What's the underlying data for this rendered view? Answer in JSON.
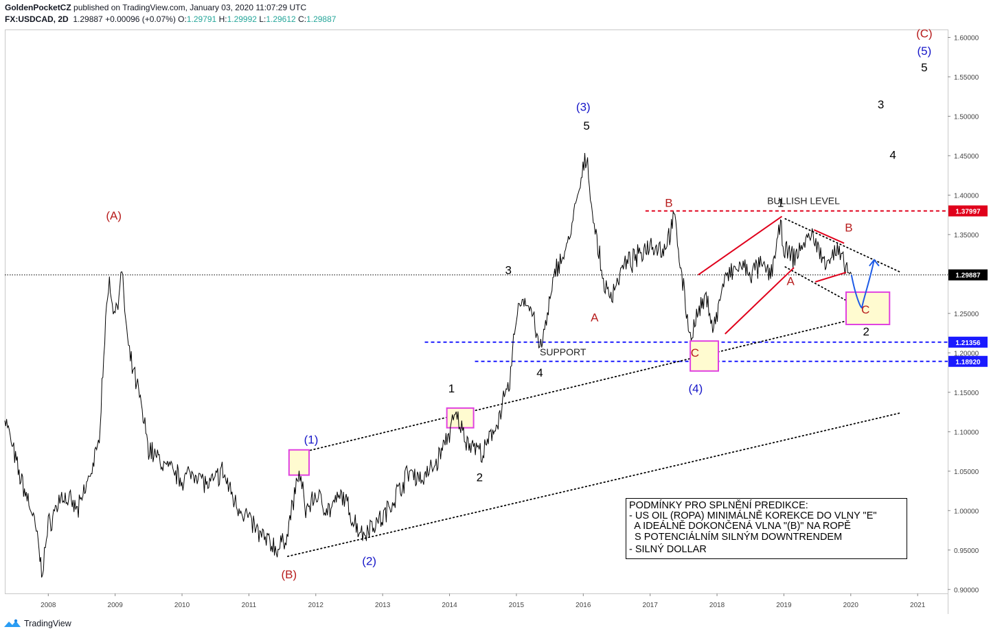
{
  "header": {
    "author": "GoldenPocketCZ",
    "published_text": "published on TradingView.com, January 03, 2020 11:07:29 UTC",
    "symbol": "FX:USDCAD, 2D",
    "last": "1.29887",
    "change": "+0.00096 (+0.07%)",
    "o_label": "O:",
    "o_value": "1.29791",
    "h_label": "H:",
    "h_value": "1.29992",
    "l_label": "L:",
    "l_value": "1.29612",
    "c_label": "C:",
    "c_value": "1.29887"
  },
  "footer": {
    "brand": "TradingView"
  },
  "colors": {
    "price": "#000000",
    "red": "#e0001b",
    "darkred": "#b71c1c",
    "blue": "#1a1aff",
    "wave_blue": "#1515c8",
    "magenta": "#e040e0",
    "box_fill": "#fffbd0"
  },
  "chart_data": {
    "type": "line",
    "y_scale": "linear",
    "ylim": [
      0.895,
      1.61
    ],
    "xlim": [
      2007.35,
      2021.45
    ],
    "y_ticks": [
      "1.60000",
      "1.55000",
      "1.50000",
      "1.45000",
      "1.40000",
      "1.35000",
      "1.30000",
      "1.25000",
      "1.20000",
      "1.15000",
      "1.10000",
      "1.05000",
      "1.00000",
      "0.95000",
      "0.90000"
    ],
    "x_ticks": [
      "2008",
      "2009",
      "2010",
      "2011",
      "2012",
      "2013",
      "2014",
      "2015",
      "2016",
      "2017",
      "2018",
      "2019",
      "2020",
      "2021"
    ],
    "price_series": {
      "x": [
        2007.35,
        2007.55,
        2007.75,
        2007.85,
        2007.9,
        2008.0,
        2008.2,
        2008.45,
        2008.6,
        2008.75,
        2008.83,
        2008.9,
        2009.0,
        2009.1,
        2009.2,
        2009.35,
        2009.5,
        2009.7,
        2009.85,
        2010.0,
        2010.2,
        2010.4,
        2010.6,
        2010.8,
        2011.0,
        2011.15,
        2011.3,
        2011.45,
        2011.57,
        2011.75,
        2011.85,
        2012.0,
        2012.2,
        2012.4,
        2012.55,
        2012.7,
        2012.8,
        2013.0,
        2013.2,
        2013.4,
        2013.6,
        2013.8,
        2014.0,
        2014.1,
        2014.25,
        2014.4,
        2014.5,
        2014.7,
        2014.9,
        2015.0,
        2015.1,
        2015.25,
        2015.35,
        2015.45,
        2015.6,
        2015.75,
        2015.9,
        2016.05,
        2016.15,
        2016.3,
        2016.4,
        2016.6,
        2016.8,
        2017.0,
        2017.2,
        2017.37,
        2017.5,
        2017.6,
        2017.72,
        2017.85,
        2017.95,
        2018.1,
        2018.2,
        2018.35,
        2018.5,
        2018.65,
        2018.8,
        2018.95,
        2019.0,
        2019.15,
        2019.3,
        2019.45,
        2019.55,
        2019.7,
        2019.8,
        2019.9,
        2020.01
      ],
      "y": [
        1.12,
        1.05,
        1.0,
        0.96,
        0.92,
        0.98,
        1.02,
        1.0,
        1.04,
        1.08,
        1.2,
        1.29,
        1.25,
        1.3,
        1.2,
        1.15,
        1.08,
        1.06,
        1.05,
        1.04,
        1.05,
        1.03,
        1.05,
        1.01,
        0.99,
        0.97,
        0.96,
        0.95,
        0.97,
        1.05,
        1.0,
        1.02,
        1.0,
        1.02,
        0.99,
        0.97,
        0.98,
        0.99,
        1.02,
        1.05,
        1.04,
        1.06,
        1.1,
        1.12,
        1.09,
        1.08,
        1.07,
        1.11,
        1.16,
        1.25,
        1.27,
        1.25,
        1.2,
        1.24,
        1.31,
        1.33,
        1.39,
        1.45,
        1.37,
        1.29,
        1.27,
        1.31,
        1.32,
        1.34,
        1.33,
        1.37,
        1.28,
        1.22,
        1.25,
        1.27,
        1.23,
        1.29,
        1.3,
        1.31,
        1.3,
        1.31,
        1.3,
        1.36,
        1.33,
        1.32,
        1.34,
        1.35,
        1.32,
        1.32,
        1.33,
        1.31,
        1.3
      ]
    },
    "price_labels": [
      {
        "text": "1.37997",
        "value": 1.37997,
        "color": "#e0001b"
      },
      {
        "text": "1.29887",
        "value": 1.29887,
        "color": "#000000"
      },
      {
        "text": "1.21356",
        "value": 1.21356,
        "color": "#1a1aff"
      },
      {
        "text": "1.18920",
        "value": 1.1892,
        "color": "#1a1aff"
      }
    ],
    "levels": [
      {
        "value": 1.37997,
        "x1": 2016.93,
        "color": "#e0001b",
        "text": "BULLISH LEVEL",
        "text_x": 2018.75
      },
      {
        "value": 1.29887,
        "x1": 2007.35,
        "color": "#000000",
        "text": ""
      },
      {
        "value": 1.21356,
        "x1": 2013.63,
        "color": "#1a1aff",
        "text": ""
      },
      {
        "value": 1.1892,
        "x1": 2014.38,
        "color": "#1a1aff",
        "text": "SUPPORT",
        "text_x": 2015.35
      }
    ],
    "dotted_lines": [
      {
        "x1": 2011.58,
        "y1": 0.942,
        "x2": 2020.75,
        "y2": 1.124
      },
      {
        "x1": 2011.7,
        "y1": 1.072,
        "x2": 2020.5,
        "y2": 1.252
      },
      {
        "x1": 2019.02,
        "y1": 1.37,
        "x2": 2020.75,
        "y2": 1.302
      },
      {
        "x1": 2019.02,
        "y1": 1.309,
        "x2": 2020.5,
        "y2": 1.24
      }
    ],
    "red_lines": [
      {
        "x1": 2017.72,
        "y1": 1.299,
        "x2": 2018.97,
        "y2": 1.373
      },
      {
        "x1": 2018.12,
        "y1": 1.224,
        "x2": 2019.15,
        "y2": 1.308
      },
      {
        "x1": 2019.45,
        "y1": 1.356,
        "x2": 2019.9,
        "y2": 1.339
      },
      {
        "x1": 2019.47,
        "y1": 1.29,
        "x2": 2019.93,
        "y2": 1.302
      }
    ],
    "boxes": [
      {
        "x1": 2011.6,
        "y1": 1.077,
        "x2": 2011.9,
        "y2": 1.045
      },
      {
        "x1": 2013.96,
        "y1": 1.13,
        "x2": 2014.36,
        "y2": 1.105
      },
      {
        "x1": 2017.6,
        "y1": 1.215,
        "x2": 2018.02,
        "y2": 1.177
      },
      {
        "x1": 2019.93,
        "y1": 1.277,
        "x2": 2020.58,
        "y2": 1.236
      }
    ],
    "forecast_path": {
      "x": [
        2020.01,
        2020.08,
        2020.17,
        2020.27,
        2020.35
      ],
      "y": [
        1.299,
        1.268,
        1.258,
        1.287,
        1.318
      ]
    },
    "wave_labels": [
      {
        "text": "(A)",
        "x": 2008.98,
        "y": 1.369,
        "color": "#b71c1c"
      },
      {
        "text": "(B)",
        "x": 2011.6,
        "y": 0.914,
        "color": "#b71c1c"
      },
      {
        "text": "(1)",
        "x": 2011.93,
        "y": 1.085,
        "color": "#1515c8"
      },
      {
        "text": "(2)",
        "x": 2012.8,
        "y": 0.931,
        "color": "#1515c8"
      },
      {
        "text": "(3)",
        "x": 2016.0,
        "y": 1.507,
        "color": "#1515c8"
      },
      {
        "text": "(4)",
        "x": 2017.68,
        "y": 1.15,
        "color": "#1515c8"
      },
      {
        "text": "(5)",
        "x": 2021.1,
        "y": 1.578,
        "color": "#1515c8"
      },
      {
        "text": "(C)",
        "x": 2021.1,
        "y": 1.6,
        "color": "#b71c1c"
      },
      {
        "text": "1",
        "x": 2014.03,
        "y": 1.15,
        "color": "#000000"
      },
      {
        "text": "2",
        "x": 2014.45,
        "y": 1.037,
        "color": "#000000"
      },
      {
        "text": "3",
        "x": 2014.88,
        "y": 1.3,
        "color": "#000000"
      },
      {
        "text": "4",
        "x": 2015.35,
        "y": 1.17,
        "color": "#000000"
      },
      {
        "text": "5",
        "x": 2016.05,
        "y": 1.483,
        "color": "#000000"
      },
      {
        "text": "1",
        "x": 2018.95,
        "y": 1.385,
        "color": "#000000"
      },
      {
        "text": "2",
        "x": 2020.23,
        "y": 1.222,
        "color": "#000000"
      },
      {
        "text": "3",
        "x": 2020.45,
        "y": 1.51,
        "color": "#000000"
      },
      {
        "text": "4",
        "x": 2020.63,
        "y": 1.446,
        "color": "#000000"
      },
      {
        "text": "5",
        "x": 2021.1,
        "y": 1.557,
        "color": "#000000"
      },
      {
        "text": "A",
        "x": 2016.17,
        "y": 1.24,
        "color": "#b71c1c"
      },
      {
        "text": "B",
        "x": 2017.28,
        "y": 1.385,
        "color": "#b71c1c"
      },
      {
        "text": "C",
        "x": 2017.67,
        "y": 1.195,
        "color": "#b71c1c"
      },
      {
        "text": "A",
        "x": 2019.1,
        "y": 1.286,
        "color": "#b71c1c"
      },
      {
        "text": "B",
        "x": 2019.97,
        "y": 1.354,
        "color": "#b71c1c"
      },
      {
        "text": "C",
        "x": 2020.22,
        "y": 1.25,
        "color": "#b71c1c"
      }
    ],
    "note_lines": [
      "PODMÍNKY PRO SPLNĚNÍ PREDIKCE:",
      "- US OIL (ROPA) MINIMÁLNĚ KOREKCE DO VLNY \"E\"",
      "  A IDEÁLNĚ DOKONČENÁ VLNA \"(B)\" NA ROPĚ",
      "  S POTENCIÁLNÍM SILNÝM DOWNTRENDEM",
      "- SILNÝ DOLLAR"
    ]
  }
}
